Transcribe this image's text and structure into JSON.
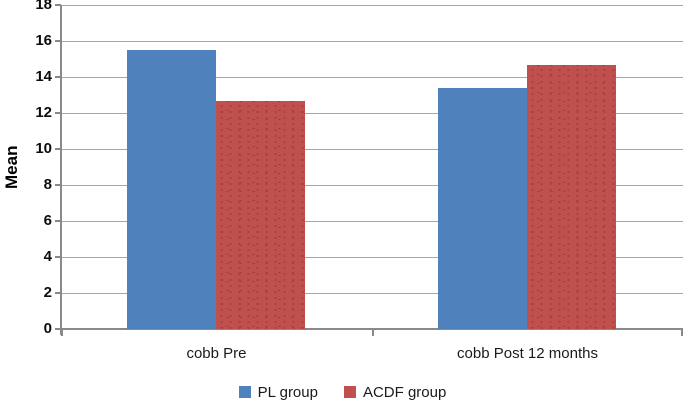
{
  "chart_data": {
    "type": "bar",
    "title": "",
    "ylabel": "Mean",
    "xlabel": "",
    "categories": [
      "cobb Pre",
      "cobb Post 12 months"
    ],
    "series": [
      {
        "name": "PL group",
        "color": "#4F81BD",
        "values": [
          15.5,
          13.4
        ]
      },
      {
        "name": "ACDF group",
        "color": "#C0504D",
        "values": [
          12.65,
          14.65
        ]
      }
    ],
    "ylim": [
      0,
      18
    ],
    "y_tick_step": 2,
    "y_ticks": [
      0,
      2,
      4,
      6,
      8,
      10,
      12,
      14,
      16,
      18
    ],
    "grid": "horizontal",
    "legend_position": "bottom",
    "colors": {
      "grid": "#A6A6A6",
      "axis": "#898989"
    }
  }
}
